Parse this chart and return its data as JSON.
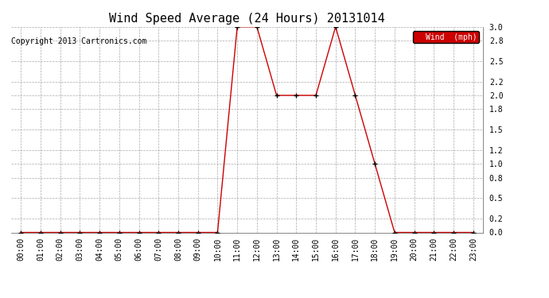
{
  "title": "Wind Speed Average (24 Hours) 20131014",
  "copyright_text": "Copyright 2013 Cartronics.com",
  "legend_label": "Wind  (mph)",
  "legend_bg": "#cc0000",
  "legend_text_color": "#ffffff",
  "x_labels": [
    "00:00",
    "01:00",
    "02:00",
    "03:00",
    "04:00",
    "05:00",
    "06:00",
    "07:00",
    "08:00",
    "09:00",
    "10:00",
    "11:00",
    "12:00",
    "13:00",
    "14:00",
    "15:00",
    "16:00",
    "17:00",
    "18:00",
    "19:00",
    "20:00",
    "21:00",
    "22:00",
    "23:00"
  ],
  "y_values": [
    0.0,
    0.0,
    0.0,
    0.0,
    0.0,
    0.0,
    0.0,
    0.0,
    0.0,
    0.0,
    0.0,
    3.0,
    3.0,
    2.0,
    2.0,
    2.0,
    3.0,
    2.0,
    1.0,
    0.0,
    0.0,
    0.0,
    0.0,
    0.0
  ],
  "y_ticks": [
    0.0,
    0.2,
    0.5,
    0.8,
    1.0,
    1.2,
    1.5,
    1.8,
    2.0,
    2.2,
    2.5,
    2.8,
    3.0
  ],
  "y_lim": [
    0.0,
    3.0
  ],
  "line_color": "#cc0000",
  "marker_color": "#000000",
  "bg_color": "#ffffff",
  "grid_color": "#aaaaaa",
  "title_fontsize": 11,
  "copyright_fontsize": 7,
  "tick_fontsize": 7
}
